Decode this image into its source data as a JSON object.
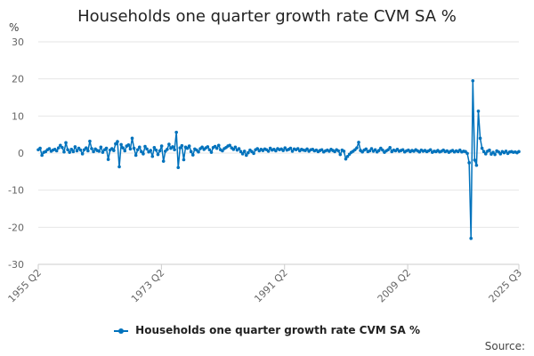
{
  "chart_data": {
    "type": "line",
    "title": "Households one quarter growth rate CVM SA %",
    "ylabel": "%",
    "xlabel": "",
    "ylim": [
      -30,
      30
    ],
    "yticks": [
      -30,
      -20,
      -10,
      0,
      10,
      20,
      30
    ],
    "x_range": [
      "1955 Q2",
      "2025 Q3"
    ],
    "x_tick_labels": [
      "1955 Q2",
      "1973 Q2",
      "1991 Q2",
      "2009 Q2",
      "2025 Q3"
    ],
    "grid": true,
    "legend_position": "bottom",
    "series": [
      {
        "name": "Households one quarter growth rate CVM SA %",
        "color": "#0072bc",
        "start": "1955 Q2",
        "end": "2025 Q3",
        "values": [
          0.9,
          1.3,
          -0.6,
          0.2,
          0.4,
          0.9,
          1.2,
          0.5,
          0.8,
          1.0,
          0.6,
          1.4,
          2.1,
          1.5,
          0.3,
          2.8,
          0.9,
          0.2,
          1.0,
          0.4,
          1.7,
          0.6,
          1.3,
          0.8,
          -0.2,
          0.9,
          1.4,
          0.6,
          3.2,
          1.2,
          0.4,
          1.1,
          0.7,
          0.5,
          1.6,
          0.2,
          0.9,
          1.3,
          -1.7,
          0.8,
          1.2,
          0.7,
          2.5,
          3.1,
          -3.7,
          2.3,
          1.4,
          0.6,
          1.9,
          2.2,
          1.1,
          4.0,
          1.3,
          -0.6,
          0.9,
          1.6,
          0.4,
          -0.2,
          1.8,
          1.1,
          0.3,
          0.7,
          -0.9,
          1.5,
          0.8,
          -0.4,
          0.6,
          1.9,
          -2.2,
          0.5,
          1.0,
          2.4,
          1.3,
          1.7,
          0.9,
          5.6,
          -3.9,
          1.4,
          2.0,
          -1.8,
          1.6,
          1.3,
          1.9,
          0.4,
          -0.5,
          1.1,
          0.8,
          0.3,
          1.2,
          1.6,
          1.0,
          1.4,
          1.7,
          0.9,
          0.2,
          1.5,
          1.8,
          1.3,
          2.1,
          0.9,
          0.6,
          1.2,
          1.5,
          1.9,
          2.1,
          1.4,
          1.0,
          1.6,
          0.8,
          1.2,
          0.4,
          -0.2,
          0.5,
          -0.6,
          0.1,
          0.8,
          0.4,
          -0.1,
          0.9,
          1.2,
          0.6,
          1.0,
          0.7,
          1.1,
          0.9,
          0.5,
          1.3,
          0.8,
          1.0,
          0.6,
          1.2,
          0.9,
          1.1,
          0.7,
          1.4,
          0.8,
          1.0,
          1.3,
          0.5,
          1.1,
          0.9,
          1.2,
          0.6,
          1.0,
          0.8,
          0.7,
          1.1,
          0.5,
          0.9,
          1.0,
          0.6,
          0.8,
          0.4,
          0.7,
          0.9,
          0.3,
          0.6,
          0.8,
          0.5,
          1.0,
          0.7,
          0.4,
          0.9,
          0.6,
          -0.4,
          0.8,
          0.5,
          -1.6,
          -0.9,
          -0.3,
          0.2,
          0.5,
          0.9,
          1.4,
          2.9,
          0.7,
          0.3,
          0.8,
          1.1,
          0.4,
          0.6,
          1.2,
          0.5,
          0.9,
          0.3,
          0.7,
          1.3,
          0.8,
          0.2,
          0.6,
          0.9,
          1.5,
          0.4,
          0.8,
          0.6,
          1.0,
          0.5,
          0.7,
          0.9,
          0.3,
          0.6,
          0.8,
          0.4,
          0.7,
          0.5,
          0.9,
          0.6,
          0.3,
          0.8,
          0.5,
          0.7,
          0.4,
          0.6,
          0.9,
          0.2,
          0.5,
          0.4,
          0.7,
          0.3,
          0.5,
          0.8,
          0.4,
          0.6,
          0.2,
          0.5,
          0.7,
          0.3,
          0.6,
          0.4,
          0.8,
          0.3,
          0.5,
          0.4,
          -0.1,
          -2.6,
          -23.0,
          19.5,
          -1.9,
          -3.3,
          11.3,
          4.0,
          1.3,
          0.4,
          -0.2,
          0.5,
          0.8,
          -0.3,
          0.2,
          -0.4,
          0.6,
          0.3,
          -0.2,
          0.4,
          0.1,
          0.5,
          -0.1,
          0.3,
          0.4,
          0.2,
          0.3,
          0.1,
          0.4
        ]
      }
    ]
  },
  "source_label": "Source:"
}
